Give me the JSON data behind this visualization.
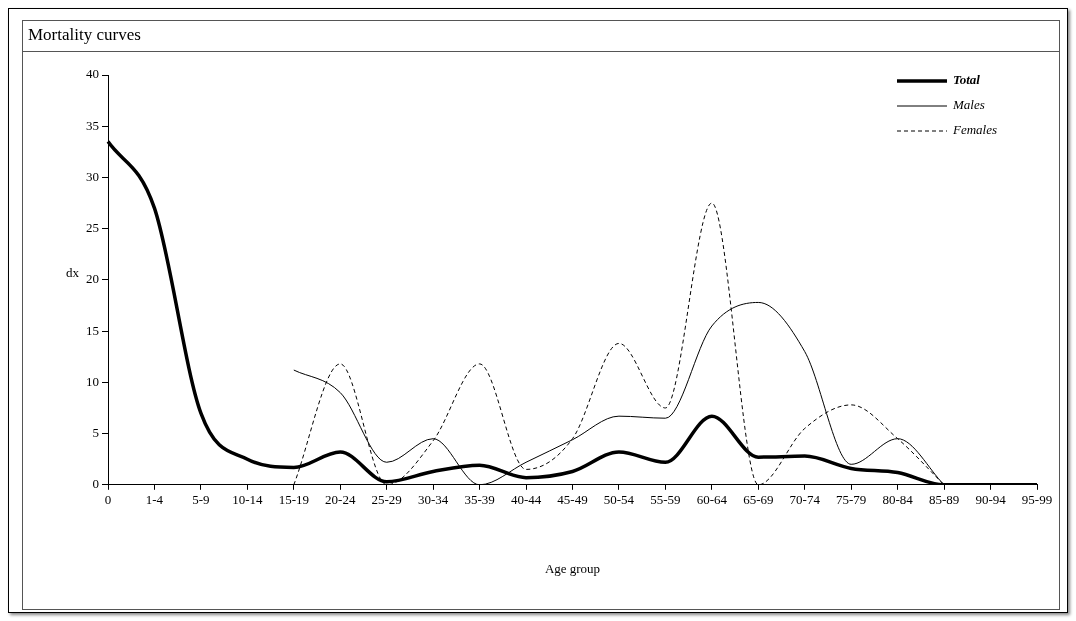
{
  "chart_data": {
    "type": "line",
    "title": "Mortality curves",
    "xlabel": "Age group",
    "ylabel": "dx",
    "categories": [
      "0",
      "1-4",
      "5-9",
      "10-14",
      "15-19",
      "20-24",
      "25-29",
      "30-34",
      "35-39",
      "40-44",
      "45-49",
      "50-54",
      "55-59",
      "60-64",
      "65-69",
      "70-74",
      "75-79",
      "80-84",
      "85-89",
      "90-94",
      "95-99"
    ],
    "series": [
      {
        "name": "Total",
        "color": "#000000",
        "line_style": "solid",
        "values": [
          33.5,
          27,
          7,
          2.5,
          1.7,
          3.2,
          0.3,
          1.3,
          1.9,
          0.7,
          1.3,
          3.2,
          2.2,
          6.7,
          2.7,
          2.8,
          1.6,
          1.2,
          0,
          0,
          0
        ]
      },
      {
        "name": "Males",
        "color": "#000000",
        "line_style": "solid",
        "values": [
          null,
          null,
          null,
          null,
          11.2,
          9,
          2.2,
          4.5,
          0,
          2.2,
          4.4,
          6.7,
          6.5,
          15.5,
          17.8,
          13,
          2,
          4.5,
          0,
          null,
          null
        ]
      },
      {
        "name": "Females",
        "color": "#000000",
        "line_style": "dashed",
        "values": [
          null,
          null,
          null,
          null,
          0,
          11.8,
          0,
          4.3,
          11.8,
          1.5,
          4.5,
          13.8,
          7.5,
          27.5,
          0,
          5.5,
          7.8,
          4.5,
          0,
          null,
          null
        ]
      }
    ],
    "ylim": [
      0,
      40
    ],
    "yticks": [
      0,
      5,
      10,
      15,
      20,
      25,
      30,
      35,
      40
    ],
    "grid": false,
    "legend": "top right",
    "marker": "none"
  }
}
